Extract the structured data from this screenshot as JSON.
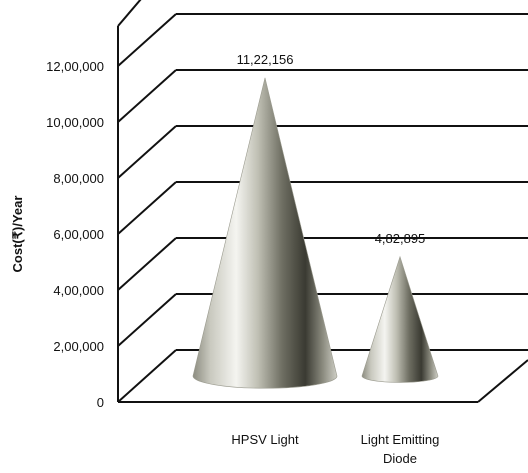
{
  "chart_data": {
    "type": "bar",
    "style": "3d-cone",
    "categories": [
      "HPSV Light",
      "Light Emitting Diode"
    ],
    "category_lines": [
      [
        "HPSV Light"
      ],
      [
        "Light Emitting",
        "Diode"
      ]
    ],
    "values": [
      1122156,
      482895
    ],
    "data_labels": [
      "11,22,156",
      "4,82,895"
    ],
    "ylabel": "Cost(₹)/Year",
    "ylim": [
      0,
      1200000
    ],
    "yticks": [
      0,
      200000,
      400000,
      600000,
      800000,
      1000000,
      1200000
    ],
    "ytick_labels": [
      "0",
      "2,00,000",
      "4,00,000",
      "6,00,000",
      "8,00,000",
      "10,00,000",
      "12,00,000"
    ],
    "grid": true,
    "legend": "none",
    "colors": {
      "cone_light": "#f2f2ee",
      "cone_dark": "#3a3a32",
      "cone_mid": "#a8a89a",
      "gridline": "#111111"
    }
  }
}
